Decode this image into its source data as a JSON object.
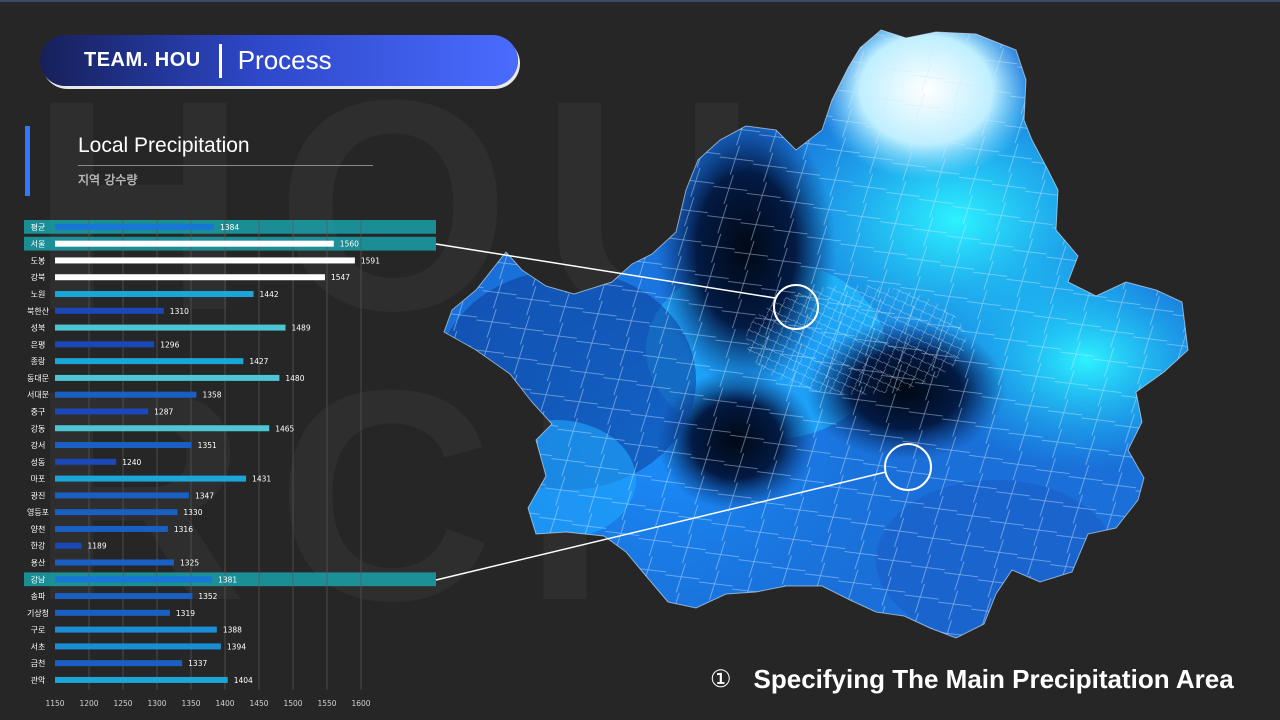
{
  "header": {
    "team": "TEAM. HOU",
    "title": "Process"
  },
  "section": {
    "title": "Local Precipitation",
    "subtitle": "지역 강수량"
  },
  "background_text": "HOU RCH",
  "footer": {
    "number": "①",
    "caption": "Specifying The Main Precipitation Area"
  },
  "colors": {
    "header_gradient_start": "#16205a",
    "header_gradient_end": "#4a6cff",
    "accent": "#2f78ff",
    "highlight_row": "#1aa0a8",
    "map_dark": "#000820",
    "map_light": "#dff6ff"
  },
  "chart_data": {
    "type": "bar",
    "orientation": "horizontal",
    "categories": [
      "평균",
      "서울",
      "도봉",
      "강북",
      "노원",
      "북한산",
      "성북",
      "은평",
      "종랑",
      "동대문",
      "서대문",
      "중구",
      "강동",
      "강서",
      "성동",
      "마포",
      "광진",
      "영등포",
      "양천",
      "한강",
      "용산",
      "강남",
      "송파",
      "기상청",
      "구로",
      "서초",
      "금천",
      "관악"
    ],
    "values": [
      1384,
      1560,
      1591,
      1547,
      1442,
      1310,
      1489,
      1296,
      1427,
      1480,
      1358,
      1287,
      1465,
      1351,
      1240,
      1431,
      1347,
      1330,
      1316,
      1189,
      1325,
      1381,
      1352,
      1319,
      1388,
      1394,
      1337,
      1404
    ],
    "bar_colors": [
      "#1877d6",
      "#ffffff",
      "#ffffff",
      "#ffffff",
      "#1aa6d8",
      "#1a48b8",
      "#4cc6d4",
      "#1a48b8",
      "#1aa6d8",
      "#4cc6d4",
      "#1a5fc4",
      "#1a48b8",
      "#4cc6d4",
      "#1a5fc4",
      "#1a48b8",
      "#1aa6d8",
      "#1a5fc4",
      "#1a5fc4",
      "#1a5fc4",
      "#1a48b8",
      "#1a5fc4",
      "#1877d6",
      "#1a5fc4",
      "#1a5fc4",
      "#1a8ed4",
      "#1a8ed4",
      "#1a5fc4",
      "#1aa6d8"
    ],
    "highlighted": [
      "평균",
      "서울",
      "강남"
    ],
    "xticks": [
      1150,
      1200,
      1250,
      1300,
      1350,
      1400,
      1450,
      1500,
      1550,
      1600
    ],
    "xlim": [
      1150,
      1650
    ],
    "grid": true,
    "title": "",
    "xlabel": "",
    "ylabel": ""
  }
}
